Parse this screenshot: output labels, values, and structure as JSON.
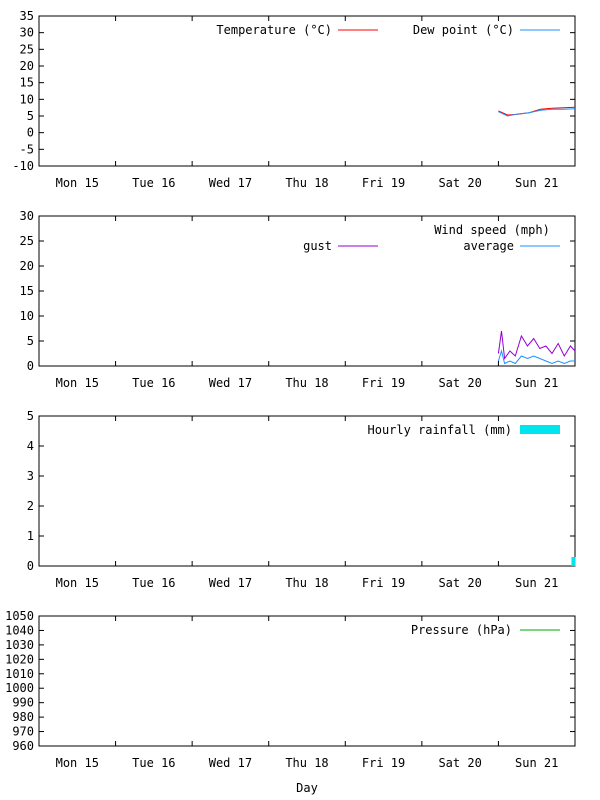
{
  "chart_data": [
    {
      "type": "line",
      "panel": "temperature",
      "ylim": [
        -10,
        35
      ],
      "yticks": [
        "-10",
        "-5",
        "0",
        "5",
        "10",
        "15",
        "20",
        "25",
        "30",
        "35"
      ],
      "xlim": [
        0,
        7
      ],
      "xticks": [
        "Mon 15",
        "Tue 16",
        "Wed 17",
        "Thu 18",
        "Fri 19",
        "Sat 20",
        "Sun 21"
      ],
      "series": [
        {
          "name": "Temperature (°C)",
          "color": "#ff0000",
          "x": [
            6.0,
            6.12,
            6.25,
            6.4,
            6.55,
            6.7,
            6.85,
            7.0
          ],
          "values": [
            6.5,
            5.3,
            5.5,
            6.0,
            7.0,
            7.3,
            7.5,
            7.6
          ]
        },
        {
          "name": "Dew point (°C)",
          "color": "#1e90ff",
          "x": [
            6.0,
            6.12,
            6.25,
            6.4,
            6.55,
            6.7,
            6.85,
            7.0
          ],
          "values": [
            6.3,
            5.0,
            5.6,
            6.0,
            6.7,
            7.0,
            7.0,
            7.2
          ]
        }
      ]
    },
    {
      "type": "line",
      "panel": "wind",
      "title": "Wind speed (mph)",
      "ylim": [
        0,
        30
      ],
      "yticks": [
        "0",
        "5",
        "10",
        "15",
        "20",
        "25",
        "30"
      ],
      "xlim": [
        0,
        7
      ],
      "xticks": [
        "Mon 15",
        "Tue 16",
        "Wed 17",
        "Thu 18",
        "Fri 19",
        "Sat 20",
        "Sun 21"
      ],
      "series": [
        {
          "name": "gust",
          "color": "#9400d3",
          "x": [
            6.0,
            6.04,
            6.08,
            6.15,
            6.22,
            6.3,
            6.38,
            6.46,
            6.54,
            6.62,
            6.7,
            6.78,
            6.86,
            6.94,
            7.0
          ],
          "values": [
            2.5,
            7.0,
            1.5,
            3.0,
            2.0,
            6.0,
            4.0,
            5.5,
            3.5,
            4.0,
            2.5,
            4.5,
            2.0,
            4.0,
            3.0
          ]
        },
        {
          "name": "average",
          "color": "#1e90ff",
          "x": [
            6.0,
            6.04,
            6.08,
            6.15,
            6.22,
            6.3,
            6.38,
            6.46,
            6.54,
            6.62,
            6.7,
            6.78,
            6.86,
            6.94,
            7.0
          ],
          "values": [
            1.0,
            3.0,
            0.5,
            1.0,
            0.5,
            2.0,
            1.5,
            2.0,
            1.5,
            1.0,
            0.5,
            1.0,
            0.5,
            1.0,
            1.0
          ]
        }
      ]
    },
    {
      "type": "bar",
      "panel": "rain",
      "ylim": [
        0,
        5
      ],
      "yticks": [
        "0",
        "1",
        "2",
        "3",
        "4",
        "5"
      ],
      "xlim": [
        0,
        7
      ],
      "xticks": [
        "Mon 15",
        "Tue 16",
        "Wed 17",
        "Thu 18",
        "Fri 19",
        "Sat 20",
        "Sun 21"
      ],
      "series": [
        {
          "name": "Hourly rainfall (mm)",
          "color": "#00e5ee",
          "x": [
            6.98
          ],
          "values": [
            0.3
          ]
        }
      ]
    },
    {
      "type": "line",
      "panel": "pressure",
      "ylim": [
        960,
        1050
      ],
      "yticks": [
        "960",
        "970",
        "980",
        "990",
        "1000",
        "1010",
        "1020",
        "1030",
        "1040",
        "1050"
      ],
      "xlim": [
        0,
        7
      ],
      "xticks": [
        "Mon 15",
        "Tue 16",
        "Wed 17",
        "Thu 18",
        "Fri 19",
        "Sat 20",
        "Sun 21"
      ],
      "xlabel": "Day",
      "series": [
        {
          "name": "Pressure (hPa)",
          "color": "#00aa00",
          "x": [],
          "values": []
        }
      ]
    }
  ]
}
